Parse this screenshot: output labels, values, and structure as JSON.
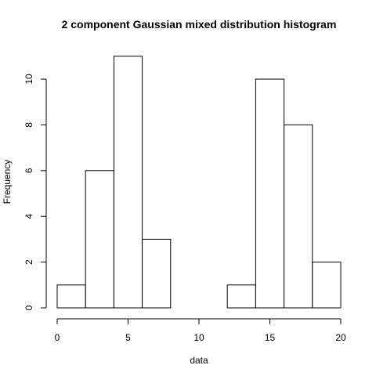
{
  "chart_data": {
    "type": "bar",
    "title": "2 component Gaussian mixed distribution histogram",
    "xlabel": "data",
    "ylabel": "Frequency",
    "bins": [
      {
        "start": 0,
        "end": 2,
        "count": 1
      },
      {
        "start": 2,
        "end": 4,
        "count": 6
      },
      {
        "start": 4,
        "end": 6,
        "count": 11
      },
      {
        "start": 6,
        "end": 8,
        "count": 3
      },
      {
        "start": 8,
        "end": 10,
        "count": 0
      },
      {
        "start": 10,
        "end": 12,
        "count": 0
      },
      {
        "start": 12,
        "end": 14,
        "count": 1
      },
      {
        "start": 14,
        "end": 16,
        "count": 10
      },
      {
        "start": 16,
        "end": 18,
        "count": 8
      },
      {
        "start": 18,
        "end": 20,
        "count": 2
      }
    ],
    "xlim": [
      0,
      20
    ],
    "ylim": [
      0,
      11
    ],
    "xticks": [
      "0",
      "5",
      "10",
      "15",
      "20"
    ],
    "yticks": [
      "0",
      "2",
      "4",
      "6",
      "8",
      "10"
    ],
    "grid": false,
    "bar_fill": "#ffffff",
    "bar_stroke": "#000000"
  }
}
